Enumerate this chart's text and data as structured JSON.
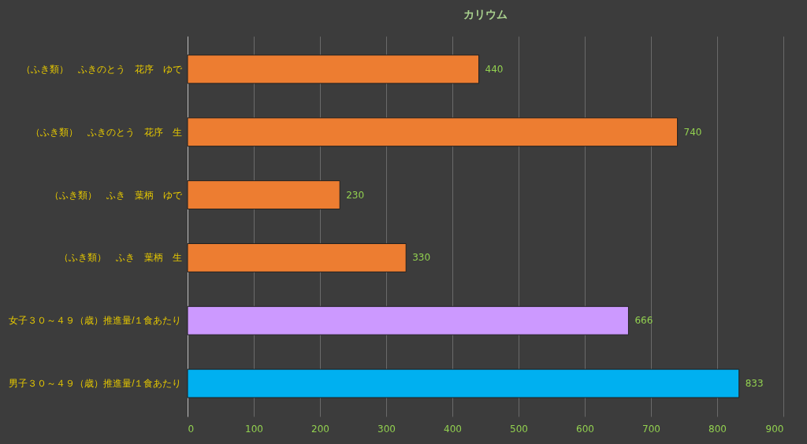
{
  "chart_data": {
    "type": "bar",
    "orientation": "horizontal",
    "title": "カリウム",
    "categories": [
      "（ふき類）　ふきのとう　花序　ゆで",
      "（ふき類）　ふきのとう　花序　生",
      "（ふき類）　ふき　葉柄　ゆで",
      "（ふき類）　ふき　葉柄　生",
      "女子３０～４９（歳）推進量/１食あたり",
      "男子３０～４９（歳）推進量/１食あたり"
    ],
    "values": [
      440,
      740,
      230,
      330,
      666,
      833
    ],
    "colors": [
      "#ed7d31",
      "#ed7d31",
      "#ed7d31",
      "#ed7d31",
      "#cc99ff",
      "#00b0f0"
    ],
    "xlim": [
      0,
      900
    ],
    "xticks": [
      0,
      100,
      200,
      300,
      400,
      500,
      600,
      700,
      800,
      900
    ],
    "grid": "x",
    "data_labels": true
  }
}
